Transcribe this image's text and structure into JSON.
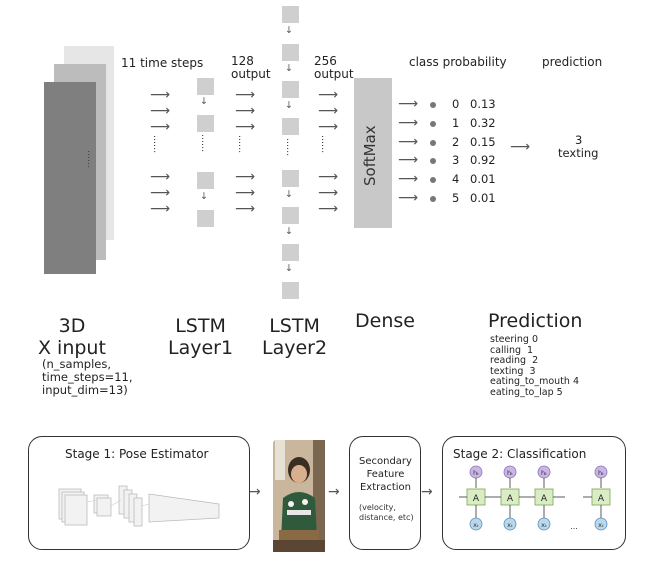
{
  "headers": {
    "time_steps": "11 time steps",
    "output128": "128\noutput",
    "output256": "256\noutput",
    "class_probability": "class probability",
    "prediction": "prediction"
  },
  "softmax_label": "SoftMax",
  "dots": "......",
  "ellipsis": "......",
  "classes": [
    {
      "index": "0",
      "prob": "0.13"
    },
    {
      "index": "1",
      "prob": "0.32"
    },
    {
      "index": "2",
      "prob": "0.15"
    },
    {
      "index": "3",
      "prob": "0.92"
    },
    {
      "index": "4",
      "prob": "0.01"
    },
    {
      "index": "5",
      "prob": "0.01"
    }
  ],
  "result": {
    "index": "3",
    "label": "texting"
  },
  "layer_names": {
    "input": "3D\nX input",
    "lstm1": "LSTM\nLayer1",
    "lstm2": "LSTM\nLayer2",
    "dense": "Dense",
    "prediction": "Prediction"
  },
  "input_shape": "(n_samples,\ntime_steps=11,\ninput_dim=13)",
  "label_map": [
    "steering 0",
    "calling  1",
    "reading  2",
    "texting  3",
    "eating_to_mouth 4",
    "eating_to_lap 5"
  ],
  "pipeline": {
    "stage1_title": "Stage 1: Pose Estimator",
    "secondary": "Secondary\nFeature\nExtraction",
    "secondary_note": "(velocity,\ndistance, etc)",
    "stage2_title": "Stage 2: Classification",
    "cell_label": "A",
    "hidden_label": "hₜ",
    "input_label": "xₜ",
    "chain_ellipsis": "..."
  }
}
